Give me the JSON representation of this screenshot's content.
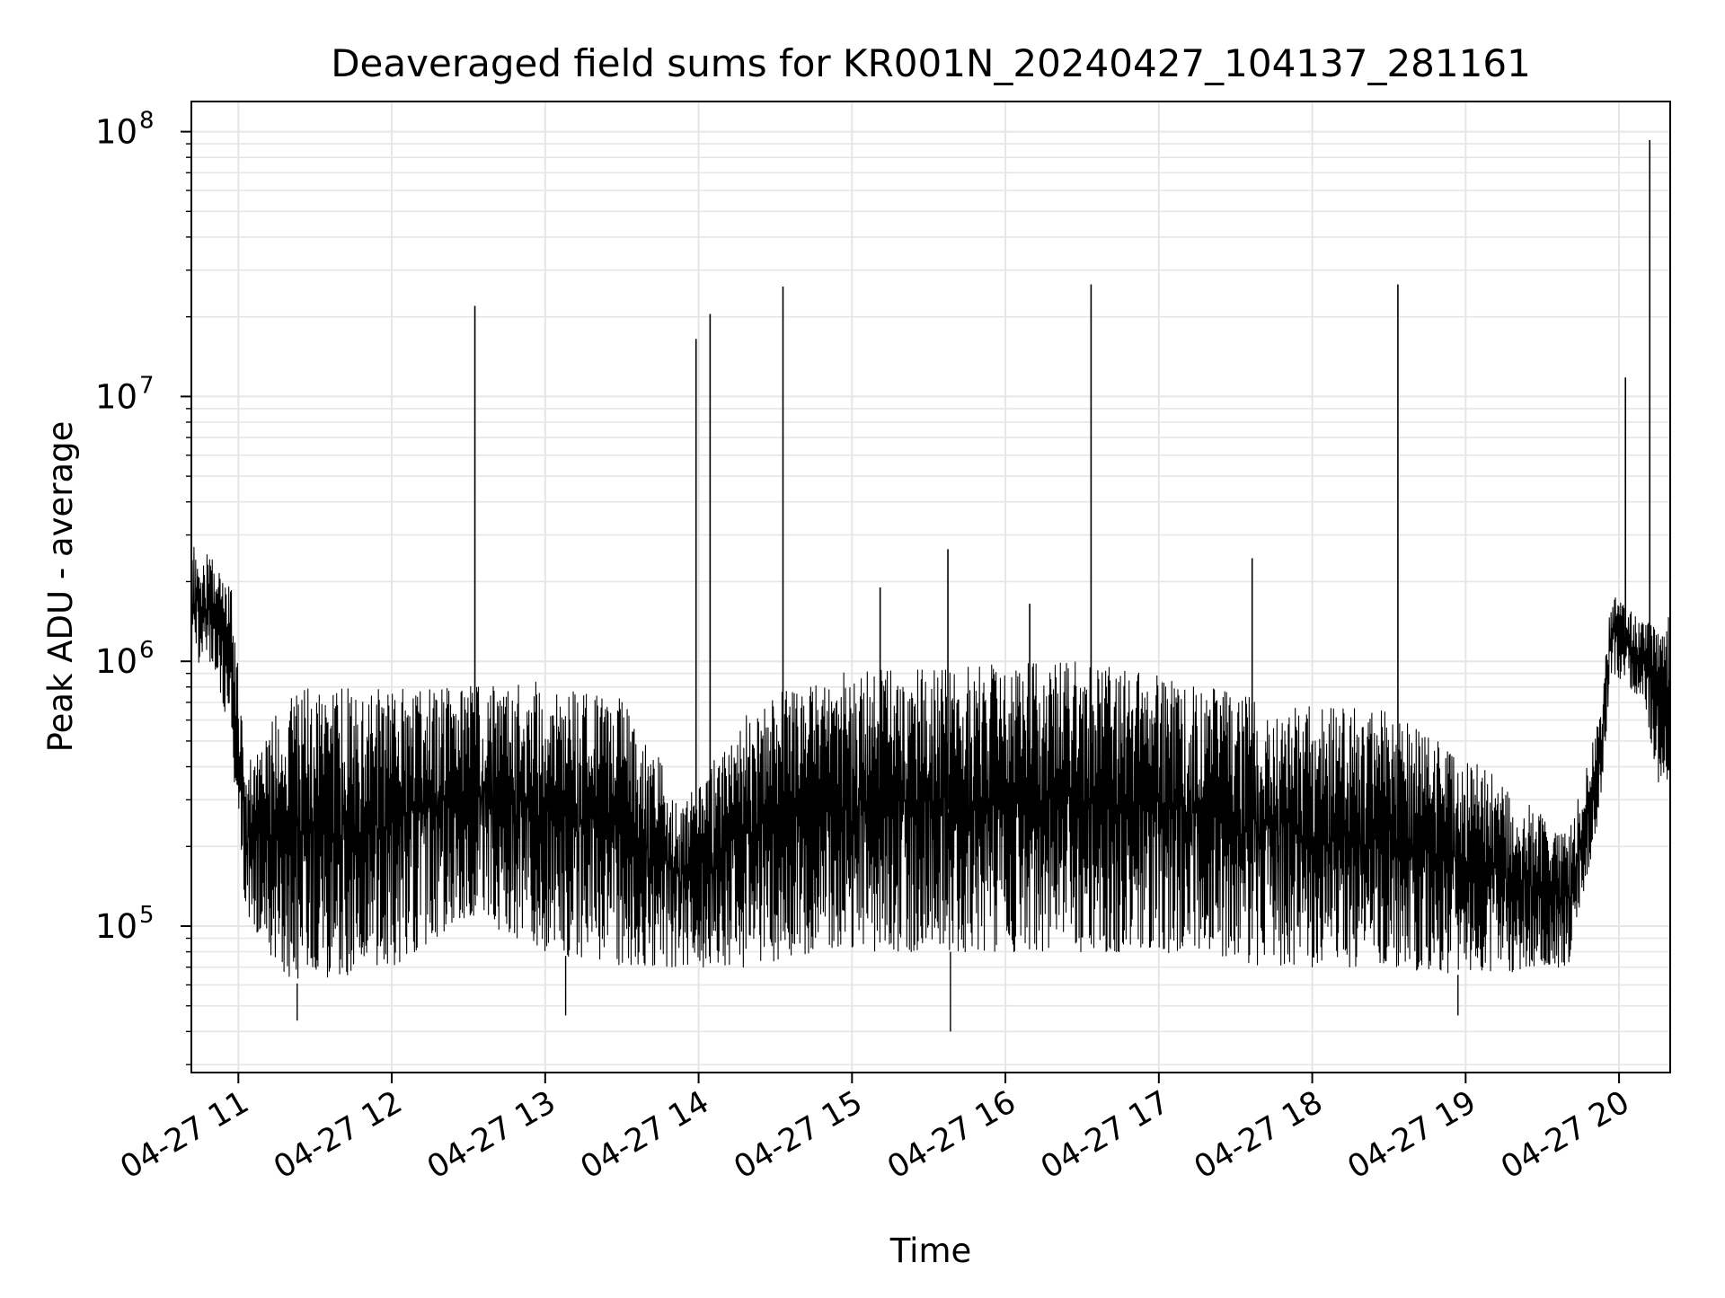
{
  "chart_data": {
    "type": "line",
    "title": "Deaveraged field sums for KR001N_20240427_104137_281161",
    "xlabel": "Time",
    "ylabel": "Peak ADU - average",
    "yscale": "log",
    "ylim": [
      28000,
      130000000
    ],
    "xlim": [
      "2024-04-27T10:41:37",
      "2024-04-27T20:20:00"
    ],
    "grid": true,
    "legend": "none",
    "line_color": "#000000",
    "grid_color": "#e6e6e6",
    "x_ticks": [
      {
        "t": "2024-04-27T11:00",
        "label": "04-27 11"
      },
      {
        "t": "2024-04-27T12:00",
        "label": "04-27 12"
      },
      {
        "t": "2024-04-27T13:00",
        "label": "04-27 13"
      },
      {
        "t": "2024-04-27T14:00",
        "label": "04-27 14"
      },
      {
        "t": "2024-04-27T15:00",
        "label": "04-27 15"
      },
      {
        "t": "2024-04-27T16:00",
        "label": "04-27 16"
      },
      {
        "t": "2024-04-27T17:00",
        "label": "04-27 17"
      },
      {
        "t": "2024-04-27T18:00",
        "label": "04-27 18"
      },
      {
        "t": "2024-04-27T19:00",
        "label": "04-27 19"
      },
      {
        "t": "2024-04-27T20:00",
        "label": "04-27 20"
      }
    ],
    "y_ticks": [
      {
        "value": 100000,
        "label": "10",
        "exp": "5"
      },
      {
        "value": 1000000,
        "label": "10",
        "exp": "6"
      },
      {
        "value": 10000000,
        "label": "10",
        "exp": "7"
      },
      {
        "value": 100000000,
        "label": "10",
        "exp": "8"
      }
    ],
    "series_envelope": [
      {
        "t": "2024-04-27T10:41:37",
        "low": 950000,
        "high": 2800000
      },
      {
        "t": "2024-04-27T10:50",
        "low": 1000000,
        "high": 2500000
      },
      {
        "t": "2024-04-27T10:57",
        "low": 500000,
        "high": 2000000
      },
      {
        "t": "2024-04-27T11:03",
        "low": 110000,
        "high": 400000
      },
      {
        "t": "2024-04-27T11:20",
        "low": 60000,
        "high": 800000
      },
      {
        "t": "2024-04-27T12:00",
        "low": 70000,
        "high": 780000
      },
      {
        "t": "2024-04-27T12:30",
        "low": 110000,
        "high": 820000
      },
      {
        "t": "2024-04-27T13:00",
        "low": 80000,
        "high": 850000
      },
      {
        "t": "2024-04-27T13:30",
        "low": 70000,
        "high": 720000
      },
      {
        "t": "2024-04-27T13:55",
        "low": 70000,
        "high": 300000
      },
      {
        "t": "2024-04-27T14:20",
        "low": 70000,
        "high": 650000
      },
      {
        "t": "2024-04-27T14:45",
        "low": 80000,
        "high": 900000
      },
      {
        "t": "2024-04-27T15:30",
        "low": 80000,
        "high": 950000
      },
      {
        "t": "2024-04-27T16:30",
        "low": 80000,
        "high": 1000000
      },
      {
        "t": "2024-04-27T17:00",
        "low": 80000,
        "high": 880000
      },
      {
        "t": "2024-04-27T17:45",
        "low": 70000,
        "high": 700000
      },
      {
        "t": "2024-04-27T18:30",
        "low": 70000,
        "high": 650000
      },
      {
        "t": "2024-04-27T19:00",
        "low": 65000,
        "high": 450000
      },
      {
        "t": "2024-04-27T19:40",
        "low": 70000,
        "high": 220000
      },
      {
        "t": "2024-04-27T19:52",
        "low": 250000,
        "high": 600000
      },
      {
        "t": "2024-04-27T19:57",
        "low": 900000,
        "high": 1800000
      },
      {
        "t": "2024-04-27T20:10",
        "low": 700000,
        "high": 1400000
      },
      {
        "t": "2024-04-27T20:15",
        "low": 350000,
        "high": 1400000
      },
      {
        "t": "2024-04-27T20:20",
        "low": 350000,
        "high": 1500000
      }
    ],
    "spikes": [
      {
        "t": "2024-04-27T12:32:30",
        "value": 22000000
      },
      {
        "t": "2024-04-27T13:59:00",
        "value": 16500000
      },
      {
        "t": "2024-04-27T14:04:30",
        "value": 20500000
      },
      {
        "t": "2024-04-27T14:33:00",
        "value": 26000000
      },
      {
        "t": "2024-04-27T15:11:00",
        "value": 1900000
      },
      {
        "t": "2024-04-27T15:37:30",
        "value": 2650000
      },
      {
        "t": "2024-04-27T16:09:30",
        "value": 1650000
      },
      {
        "t": "2024-04-27T16:33:30",
        "value": 26500000
      },
      {
        "t": "2024-04-27T17:36:30",
        "value": 2450000
      },
      {
        "t": "2024-04-27T18:33:30",
        "value": 26500000
      },
      {
        "t": "2024-04-27T20:02:30",
        "value": 11800000
      },
      {
        "t": "2024-04-27T20:12:00",
        "value": 93000000
      }
    ],
    "dips": [
      {
        "t": "2024-04-27T11:23:00",
        "value": 44000
      },
      {
        "t": "2024-04-27T13:08:00",
        "value": 46000
      },
      {
        "t": "2024-04-27T15:38:30",
        "value": 40000
      },
      {
        "t": "2024-04-27T18:57:00",
        "value": 46000
      }
    ]
  }
}
